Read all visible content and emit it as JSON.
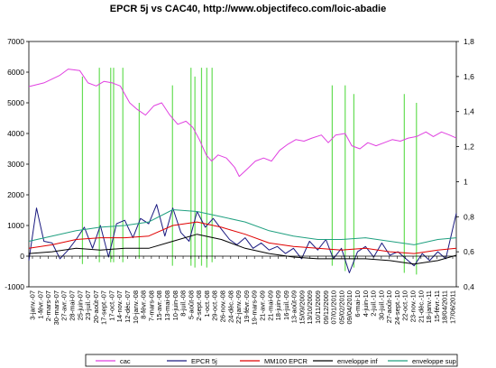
{
  "chart_data": {
    "type": "line",
    "title": "EPCR 5j vs CAC40,  http://www.objectifeco.com/loic-abadie",
    "ylim_left": [
      -1000,
      7000
    ],
    "yticks_left": [
      "-1000",
      "0",
      "1000",
      "2000",
      "3000",
      "4000",
      "5000",
      "6000",
      "7000"
    ],
    "ylim_right": [
      0.4,
      1.8
    ],
    "yticks_right": [
      "0,4",
      "0,6",
      "0,8",
      "1",
      "1,2",
      "1,4",
      "1,6",
      "1,8"
    ],
    "x_range": [
      "2007-01-03",
      "2011-06-10"
    ],
    "x_tick_labels": [
      "3-janv.-07",
      "1-févr.-07",
      "2-mars-07",
      "30-mars-07",
      "27-avr.-07",
      "28-mai-07",
      "25-juin-07",
      "23-juil.-07",
      "20-août-07",
      "17-sept.-07",
      "17-oct.-07",
      "14-nov.-07",
      "12-déc.-07",
      "10-janv.-08",
      "8-févr.-08",
      "7-mars-08",
      "15-avr.-08",
      "13-mai-08",
      "10-juin-08",
      "8-juil.-08",
      "5-août-08",
      "2-sept.-08",
      "1-oct.-08",
      "29-oct.-08",
      "26-nov.-08",
      "24-déc.-08",
      "22-janv.-09",
      "19-févr.-09",
      "19-mars-09",
      "21-avr.-09",
      "21-mai-09",
      "18-juin-09",
      "16-juil.-09",
      "13-août-09",
      "15/09/2009",
      "13/10/2009",
      "10/11/2009",
      "09/12/2009",
      "07/01/2010",
      "05/02/2010",
      "09/04/2010",
      "6-mai-10",
      "4-juin-10",
      "2-juil.-10",
      "30-juil.-10",
      "27-août-10",
      "24-sept.-10",
      "22-oct.-10",
      "23-nov.-10",
      "21-déc.-10",
      "18-janv.-11",
      "15-févr.-11",
      "18/04/2011",
      "17/06/2011"
    ],
    "series": [
      {
        "name": "cac",
        "axis": "left",
        "color": "#e040e0",
        "x": [
          "2007-01-03",
          "2007-03-01",
          "2007-05-01",
          "2007-06-01",
          "2007-07-15",
          "2007-08-15",
          "2007-09-15",
          "2007-10-15",
          "2007-11-15",
          "2007-12-15",
          "2008-01-20",
          "2008-02-15",
          "2008-03-20",
          "2008-04-20",
          "2008-05-20",
          "2008-06-20",
          "2008-07-20",
          "2008-08-20",
          "2008-09-15",
          "2008-10-10",
          "2008-11-05",
          "2008-11-25",
          "2008-12-20",
          "2009-01-20",
          "2009-02-20",
          "2009-03-10",
          "2009-04-10",
          "2009-05-10",
          "2009-06-10",
          "2009-07-10",
          "2009-08-10",
          "2009-09-10",
          "2009-10-10",
          "2009-11-10",
          "2009-12-10",
          "2010-01-15",
          "2010-02-10",
          "2010-03-10",
          "2010-04-15",
          "2010-05-10",
          "2010-06-10",
          "2010-07-10",
          "2010-08-10",
          "2010-09-10",
          "2010-10-10",
          "2010-11-10",
          "2010-12-10",
          "2011-01-10",
          "2011-02-15",
          "2011-03-15",
          "2011-04-15",
          "2011-05-15",
          "2011-06-10"
        ],
        "y": [
          5530,
          5650,
          5900,
          6100,
          6050,
          5650,
          5550,
          5700,
          5650,
          5550,
          5000,
          4800,
          4600,
          4900,
          5000,
          4600,
          4300,
          4400,
          4200,
          3800,
          3300,
          3100,
          3300,
          3200,
          2900,
          2600,
          2850,
          3100,
          3200,
          3100,
          3450,
          3650,
          3800,
          3750,
          3850,
          3950,
          3700,
          3950,
          4000,
          3600,
          3500,
          3700,
          3600,
          3700,
          3800,
          3750,
          3850,
          3900,
          4050,
          3900,
          4050,
          3950,
          3850
        ]
      },
      {
        "name": "EPCR 5j",
        "axis": "right",
        "color": "#1a1a80",
        "x": [
          "2007-01-03",
          "2007-02-01",
          "2007-03-01",
          "2007-04-01",
          "2007-05-01",
          "2007-06-01",
          "2007-07-01",
          "2007-08-01",
          "2007-09-01",
          "2007-10-01",
          "2007-11-01",
          "2007-12-01",
          "2008-01-01",
          "2008-02-01",
          "2008-03-01",
          "2008-04-01",
          "2008-05-01",
          "2008-06-01",
          "2008-07-01",
          "2008-08-01",
          "2008-09-01",
          "2008-10-01",
          "2008-11-01",
          "2008-12-01",
          "2009-01-01",
          "2009-02-01",
          "2009-03-01",
          "2009-04-01",
          "2009-05-01",
          "2009-06-01",
          "2009-07-01",
          "2009-08-01",
          "2009-09-01",
          "2009-10-01",
          "2009-11-01",
          "2009-12-01",
          "2010-01-01",
          "2010-02-01",
          "2010-03-01",
          "2010-04-01",
          "2010-05-01",
          "2010-06-01",
          "2010-07-01",
          "2010-08-01",
          "2010-09-01",
          "2010-10-01",
          "2010-11-01",
          "2010-12-01",
          "2011-01-01",
          "2011-02-01",
          "2011-03-01",
          "2011-04-01",
          "2011-05-01",
          "2011-06-10"
        ],
        "y": [
          0.55,
          0.85,
          0.66,
          0.65,
          0.56,
          0.61,
          0.67,
          0.74,
          0.62,
          0.75,
          0.57,
          0.76,
          0.78,
          0.68,
          0.79,
          0.76,
          0.87,
          0.69,
          0.85,
          0.71,
          0.66,
          0.83,
          0.74,
          0.79,
          0.73,
          0.67,
          0.64,
          0.68,
          0.62,
          0.65,
          0.61,
          0.63,
          0.59,
          0.62,
          0.56,
          0.66,
          0.61,
          0.67,
          0.56,
          0.62,
          0.48,
          0.6,
          0.63,
          0.57,
          0.65,
          0.58,
          0.6,
          0.56,
          0.52,
          0.59,
          0.55,
          0.6,
          0.56,
          0.82
        ]
      },
      {
        "name": "MM100 EPCR",
        "axis": "right",
        "color": "#e00000",
        "x": [
          "2007-01-03",
          "2007-04-01",
          "2007-07-01",
          "2007-10-01",
          "2008-01-01",
          "2008-04-01",
          "2008-07-01",
          "2008-10-01",
          "2009-01-01",
          "2009-04-01",
          "2009-07-01",
          "2009-10-01",
          "2010-01-01",
          "2010-04-01",
          "2010-07-01",
          "2010-10-01",
          "2011-01-01",
          "2011-04-01",
          "2011-06-10"
        ],
        "y": [
          0.62,
          0.64,
          0.67,
          0.68,
          0.68,
          0.69,
          0.75,
          0.77,
          0.74,
          0.7,
          0.65,
          0.63,
          0.62,
          0.61,
          0.62,
          0.6,
          0.59,
          0.61,
          0.62
        ]
      },
      {
        "name": "enveloppe inf",
        "axis": "right",
        "color": "#000000",
        "x": [
          "2007-01-03",
          "2007-04-01",
          "2007-07-01",
          "2007-10-01",
          "2008-01-01",
          "2008-04-01",
          "2008-07-01",
          "2008-10-01",
          "2009-01-01",
          "2009-04-01",
          "2009-07-01",
          "2009-10-01",
          "2010-01-01",
          "2010-04-01",
          "2010-07-01",
          "2010-10-01",
          "2011-01-01",
          "2011-04-01",
          "2011-06-10"
        ],
        "y": [
          0.59,
          0.6,
          0.62,
          0.61,
          0.62,
          0.62,
          0.66,
          0.7,
          0.67,
          0.62,
          0.59,
          0.57,
          0.56,
          0.56,
          0.56,
          0.55,
          0.53,
          0.55,
          0.58
        ]
      },
      {
        "name": "enveloppe sup",
        "axis": "right",
        "color": "#20a080",
        "x": [
          "2007-01-03",
          "2007-04-01",
          "2007-07-01",
          "2007-10-01",
          "2008-01-01",
          "2008-04-01",
          "2008-07-01",
          "2008-10-01",
          "2009-01-01",
          "2009-04-01",
          "2009-07-01",
          "2009-10-01",
          "2010-01-01",
          "2010-04-01",
          "2010-07-01",
          "2010-10-01",
          "2011-01-01",
          "2011-04-01",
          "2011-06-10"
        ],
        "y": [
          0.66,
          0.69,
          0.72,
          0.74,
          0.75,
          0.77,
          0.84,
          0.83,
          0.8,
          0.77,
          0.72,
          0.69,
          0.67,
          0.67,
          0.68,
          0.66,
          0.64,
          0.67,
          0.68
        ]
      }
    ],
    "signal_lines": {
      "color": "#66dd55",
      "dates": [
        "2007-07-25",
        "2007-09-27",
        "2007-11-09",
        "2007-11-20",
        "2007-12-25",
        "2008-02-25",
        "2008-06-30",
        "2008-09-08",
        "2008-09-23",
        "2008-10-18",
        "2008-11-07",
        "2008-11-27",
        "2010-02-25",
        "2010-04-15",
        "2010-05-18",
        "2010-11-25",
        "2011-01-10"
      ],
      "tops": [
        1.6,
        1.65,
        1.65,
        1.65,
        1.65,
        1.45,
        1.55,
        1.65,
        1.6,
        1.65,
        1.65,
        1.65,
        1.55,
        1.55,
        1.5,
        1.5,
        1.45
      ],
      "bottoms": [
        0.53,
        0.54,
        0.54,
        0.54,
        0.54,
        0.56,
        0.52,
        0.52,
        0.51,
        0.52,
        0.51,
        0.54,
        0.52,
        0.49,
        0.51,
        0.48,
        0.47
      ]
    },
    "legend_position": "bottom",
    "grid": false
  }
}
